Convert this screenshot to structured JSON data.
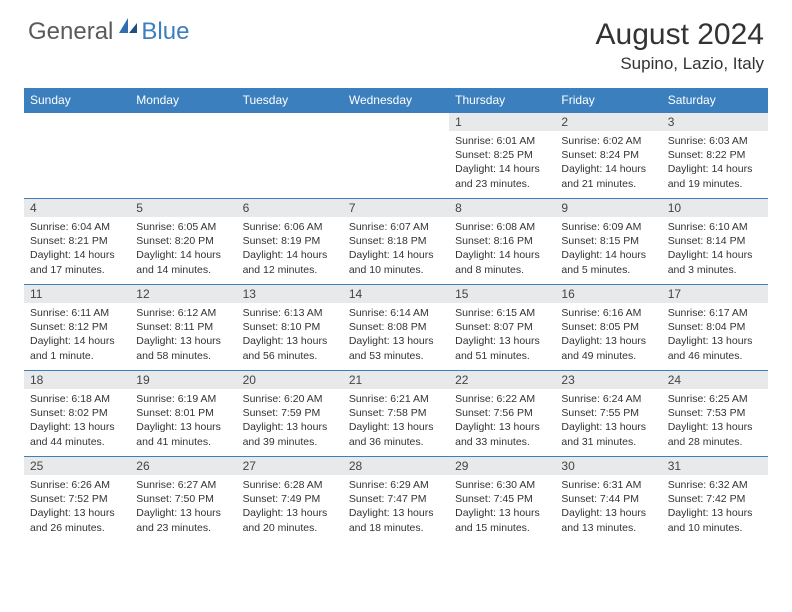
{
  "brand": {
    "part1": "General",
    "part2": "Blue"
  },
  "title": "August 2024",
  "location": "Supino, Lazio, Italy",
  "colors": {
    "header_bg": "#3b7fbf",
    "header_text": "#ffffff",
    "daynum_bg": "#e8e9ea",
    "border": "#3b7fbf",
    "body_text": "#333333",
    "logo_gray": "#5a5a5a",
    "logo_blue": "#3b7fbf"
  },
  "day_headers": [
    "Sunday",
    "Monday",
    "Tuesday",
    "Wednesday",
    "Thursday",
    "Friday",
    "Saturday"
  ],
  "weeks": [
    [
      null,
      null,
      null,
      null,
      {
        "n": "1",
        "sr": "6:01 AM",
        "ss": "8:25 PM",
        "dl": "14 hours and 23 minutes."
      },
      {
        "n": "2",
        "sr": "6:02 AM",
        "ss": "8:24 PM",
        "dl": "14 hours and 21 minutes."
      },
      {
        "n": "3",
        "sr": "6:03 AM",
        "ss": "8:22 PM",
        "dl": "14 hours and 19 minutes."
      }
    ],
    [
      {
        "n": "4",
        "sr": "6:04 AM",
        "ss": "8:21 PM",
        "dl": "14 hours and 17 minutes."
      },
      {
        "n": "5",
        "sr": "6:05 AM",
        "ss": "8:20 PM",
        "dl": "14 hours and 14 minutes."
      },
      {
        "n": "6",
        "sr": "6:06 AM",
        "ss": "8:19 PM",
        "dl": "14 hours and 12 minutes."
      },
      {
        "n": "7",
        "sr": "6:07 AM",
        "ss": "8:18 PM",
        "dl": "14 hours and 10 minutes."
      },
      {
        "n": "8",
        "sr": "6:08 AM",
        "ss": "8:16 PM",
        "dl": "14 hours and 8 minutes."
      },
      {
        "n": "9",
        "sr": "6:09 AM",
        "ss": "8:15 PM",
        "dl": "14 hours and 5 minutes."
      },
      {
        "n": "10",
        "sr": "6:10 AM",
        "ss": "8:14 PM",
        "dl": "14 hours and 3 minutes."
      }
    ],
    [
      {
        "n": "11",
        "sr": "6:11 AM",
        "ss": "8:12 PM",
        "dl": "14 hours and 1 minute."
      },
      {
        "n": "12",
        "sr": "6:12 AM",
        "ss": "8:11 PM",
        "dl": "13 hours and 58 minutes."
      },
      {
        "n": "13",
        "sr": "6:13 AM",
        "ss": "8:10 PM",
        "dl": "13 hours and 56 minutes."
      },
      {
        "n": "14",
        "sr": "6:14 AM",
        "ss": "8:08 PM",
        "dl": "13 hours and 53 minutes."
      },
      {
        "n": "15",
        "sr": "6:15 AM",
        "ss": "8:07 PM",
        "dl": "13 hours and 51 minutes."
      },
      {
        "n": "16",
        "sr": "6:16 AM",
        "ss": "8:05 PM",
        "dl": "13 hours and 49 minutes."
      },
      {
        "n": "17",
        "sr": "6:17 AM",
        "ss": "8:04 PM",
        "dl": "13 hours and 46 minutes."
      }
    ],
    [
      {
        "n": "18",
        "sr": "6:18 AM",
        "ss": "8:02 PM",
        "dl": "13 hours and 44 minutes."
      },
      {
        "n": "19",
        "sr": "6:19 AM",
        "ss": "8:01 PM",
        "dl": "13 hours and 41 minutes."
      },
      {
        "n": "20",
        "sr": "6:20 AM",
        "ss": "7:59 PM",
        "dl": "13 hours and 39 minutes."
      },
      {
        "n": "21",
        "sr": "6:21 AM",
        "ss": "7:58 PM",
        "dl": "13 hours and 36 minutes."
      },
      {
        "n": "22",
        "sr": "6:22 AM",
        "ss": "7:56 PM",
        "dl": "13 hours and 33 minutes."
      },
      {
        "n": "23",
        "sr": "6:24 AM",
        "ss": "7:55 PM",
        "dl": "13 hours and 31 minutes."
      },
      {
        "n": "24",
        "sr": "6:25 AM",
        "ss": "7:53 PM",
        "dl": "13 hours and 28 minutes."
      }
    ],
    [
      {
        "n": "25",
        "sr": "6:26 AM",
        "ss": "7:52 PM",
        "dl": "13 hours and 26 minutes."
      },
      {
        "n": "26",
        "sr": "6:27 AM",
        "ss": "7:50 PM",
        "dl": "13 hours and 23 minutes."
      },
      {
        "n": "27",
        "sr": "6:28 AM",
        "ss": "7:49 PM",
        "dl": "13 hours and 20 minutes."
      },
      {
        "n": "28",
        "sr": "6:29 AM",
        "ss": "7:47 PM",
        "dl": "13 hours and 18 minutes."
      },
      {
        "n": "29",
        "sr": "6:30 AM",
        "ss": "7:45 PM",
        "dl": "13 hours and 15 minutes."
      },
      {
        "n": "30",
        "sr": "6:31 AM",
        "ss": "7:44 PM",
        "dl": "13 hours and 13 minutes."
      },
      {
        "n": "31",
        "sr": "6:32 AM",
        "ss": "7:42 PM",
        "dl": "13 hours and 10 minutes."
      }
    ]
  ],
  "labels": {
    "sunrise": "Sunrise:",
    "sunset": "Sunset:",
    "daylight": "Daylight:"
  }
}
